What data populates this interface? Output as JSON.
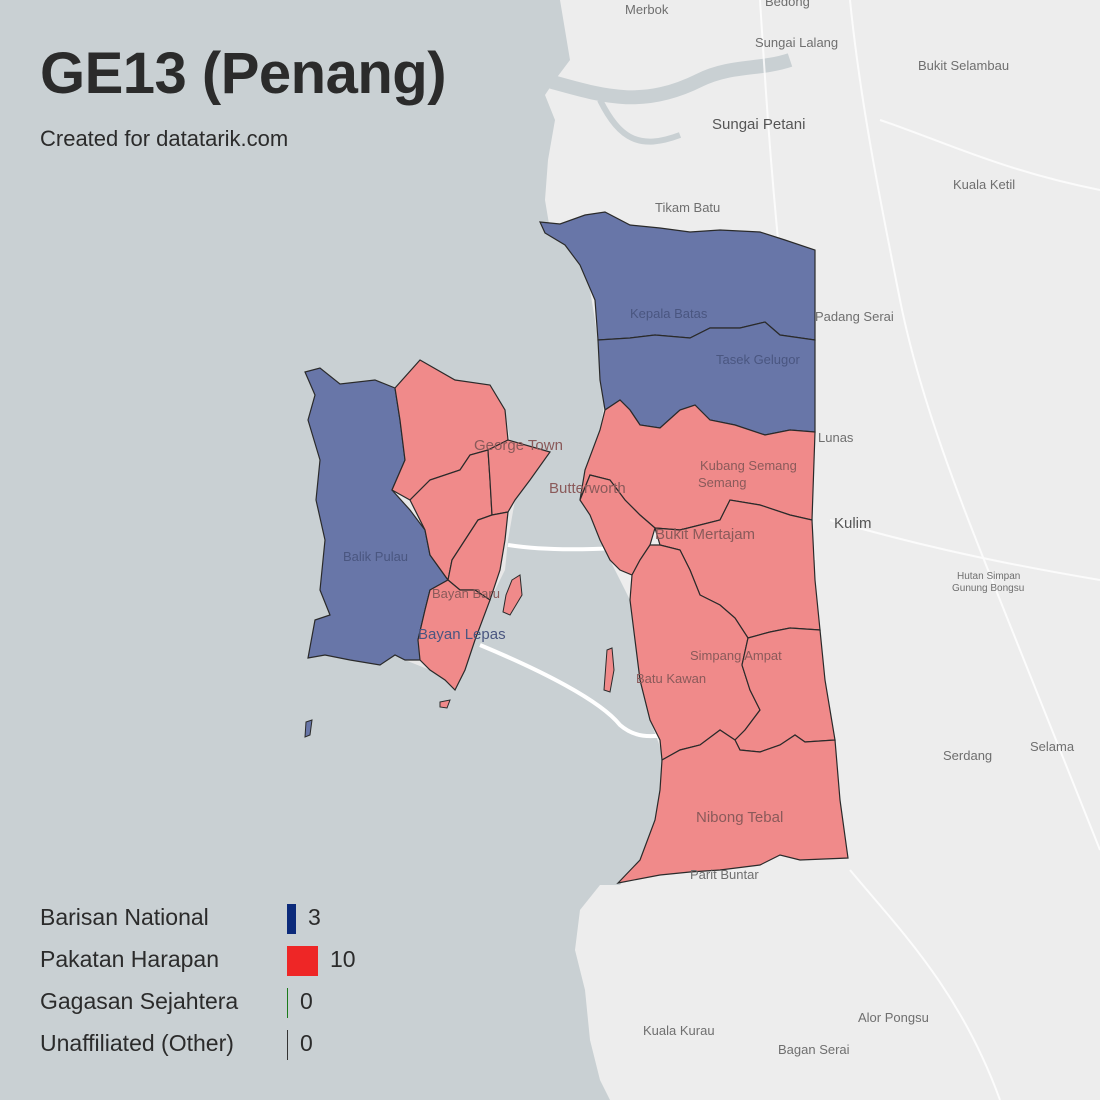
{
  "title": "GE13 (Penang)",
  "subtitle": "Created for datatarik.com",
  "colors": {
    "sea": "#c9d0d3",
    "land": "#eeeeee",
    "barisan": "#0b2a7a",
    "pakatan": "#ee2626",
    "gagasan": "#1a7a1a",
    "other": "#333333"
  },
  "legend": [
    {
      "label": "Barisan National",
      "count": "3",
      "count_value": 3,
      "color": "#0b2a7a"
    },
    {
      "label": "Pakatan Harapan",
      "count": "10",
      "count_value": 10,
      "color": "#ee2626"
    },
    {
      "label": "Gagasan Sejahtera",
      "count": "0",
      "count_value": 0,
      "color": "#1a7a1a"
    },
    {
      "label": "Unaffiliated (Other)",
      "count": "0",
      "count_value": 0,
      "color": "#333333"
    }
  ],
  "places": {
    "merbok": "Merbok",
    "bedong": "Bedong",
    "sungai_lalang": "Sungai Lalang",
    "bukit_selambau": "Bukit Selambau",
    "sungai_petani": "Sungai Petani",
    "kuala_ketil": "Kuala Ketil",
    "tikam_batu": "Tikam Batu",
    "kepala_batas": "Kepala Batas",
    "padang_serai": "Padang Serai",
    "tasek_gelugor": "Tasek Gelugor",
    "lunas": "Lunas",
    "george_town": "George Town",
    "kubang_semang": "Kubang Semang",
    "butterworth": "Butterworth",
    "kulim": "Kulim",
    "bukit_mertajam": "Bukit Mertajam",
    "balik_pulau": "Balik Pulau",
    "hutan_simpan": "Hutan Simpan",
    "gunung_bongsu": "Gunung Bongsu",
    "bayan_baru": "Bayan Baru",
    "bayan_lepas": "Bayan Lepas",
    "simpang_ampat": "Simpang Ampat",
    "batu_kawan": "Batu Kawan",
    "serdang": "Serdang",
    "selama": "Selama",
    "nibong_tebal": "Nibong Tebal",
    "parit_buntar": "Parit Buntar",
    "kuala_kurau": "Kuala Kurau",
    "alor_pongsu": "Alor Pongsu",
    "bagan_serai": "Bagan Serai"
  }
}
